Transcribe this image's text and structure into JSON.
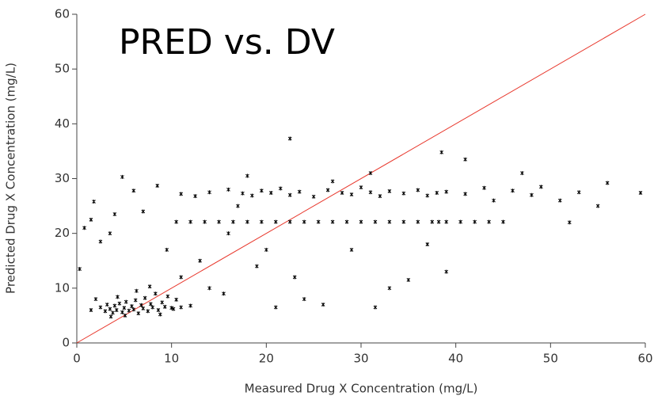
{
  "chart_data": {
    "type": "scatter",
    "title": "PRED vs. DV",
    "x_label": "Measured Drug X Concentration (mg/L)",
    "y_label": "Predicted Drug X Concentration (mg/L)",
    "xlim": [
      0,
      60
    ],
    "ylim": [
      0,
      60
    ],
    "xticks": [
      0,
      10,
      20,
      30,
      40,
      50,
      60
    ],
    "yticks": [
      0,
      10,
      20,
      30,
      40,
      50,
      60
    ],
    "color": "#000000",
    "identity_line": {
      "color": "#e8372c",
      "x": [
        0,
        60
      ],
      "y": [
        0,
        60
      ]
    },
    "x": [
      2.5,
      3,
      3.2,
      3.5,
      3.8,
      4,
      4.2,
      4.5,
      4.8,
      5,
      5.2,
      5.5,
      5.8,
      6,
      6.2,
      6.5,
      6.8,
      7,
      7.2,
      7.5,
      7.8,
      8,
      8.3,
      8.6,
      9,
      9.3,
      9.6,
      10,
      10.5,
      11,
      4.3,
      2,
      1.5,
      6.3,
      7.7,
      12,
      3.6,
      5.1,
      8.8,
      10.2,
      10.5,
      12,
      13.5,
      15,
      16.5,
      18,
      19.5,
      21,
      22.5,
      24,
      25.5,
      27,
      28.5,
      30,
      31.5,
      33,
      34.5,
      36,
      37.5,
      39,
      40.5,
      42,
      43.5,
      45,
      38.2,
      11,
      12.5,
      14,
      16,
      17.5,
      18.5,
      19.5,
      20.5,
      21.5,
      22.5,
      23.5,
      25,
      26.5,
      28,
      29,
      30,
      31,
      32,
      33,
      34.5,
      36,
      37,
      38,
      39,
      41,
      43,
      46,
      49,
      53,
      59.5,
      0.3,
      0.8,
      1.5,
      1.8,
      2.5,
      3.5,
      4.8,
      4,
      6,
      8.5,
      7,
      9.5,
      11,
      13,
      14,
      15.5,
      16,
      17,
      18,
      19,
      20,
      21,
      22.5,
      23,
      24,
      26,
      27,
      29,
      31,
      31.5,
      33,
      35,
      37,
      38.5,
      39,
      41,
      44,
      48,
      51,
      52,
      55,
      56,
      47
    ],
    "y": [
      6.5,
      5.8,
      7,
      6.2,
      5.5,
      6.8,
      6,
      7.2,
      5.6,
      6.4,
      7.5,
      5.9,
      6.7,
      6.1,
      7.8,
      5.4,
      6.9,
      6.3,
      8.2,
      5.8,
      7.1,
      6.5,
      9,
      6,
      7.4,
      6.6,
      8.5,
      6.4,
      7.9,
      6.5,
      8.4,
      8,
      6,
      9.5,
      10.3,
      6.8,
      4.8,
      5,
      5.2,
      6.2,
      22.1,
      22.1,
      22.1,
      22.1,
      22.1,
      22.1,
      22.1,
      22.1,
      22.1,
      22.1,
      22.1,
      22.1,
      22.1,
      22.1,
      22.1,
      22.1,
      22.1,
      22.1,
      22.1,
      22.1,
      22.1,
      22.1,
      22.1,
      22.1,
      22.1,
      27.2,
      26.8,
      27.5,
      28,
      27.3,
      26.9,
      27.8,
      27.4,
      28.2,
      27,
      27.6,
      26.7,
      27.9,
      27.4,
      27.1,
      28.4,
      27.5,
      26.8,
      27.7,
      27.3,
      27.9,
      26.9,
      27.4,
      27.6,
      27.2,
      28.3,
      27.8,
      28.5,
      27.5,
      27.4,
      13.5,
      21,
      22.5,
      25.8,
      18.5,
      20,
      30.3,
      23.5,
      27.8,
      28.7,
      24,
      17,
      12,
      15,
      10,
      9,
      20,
      25,
      30.5,
      14,
      17,
      6.5,
      37.3,
      12,
      8,
      7,
      29.5,
      17,
      31,
      6.5,
      10,
      11.5,
      18,
      34.8,
      13,
      33.5,
      26,
      27,
      26,
      22,
      25,
      29.2,
      31
    ]
  }
}
